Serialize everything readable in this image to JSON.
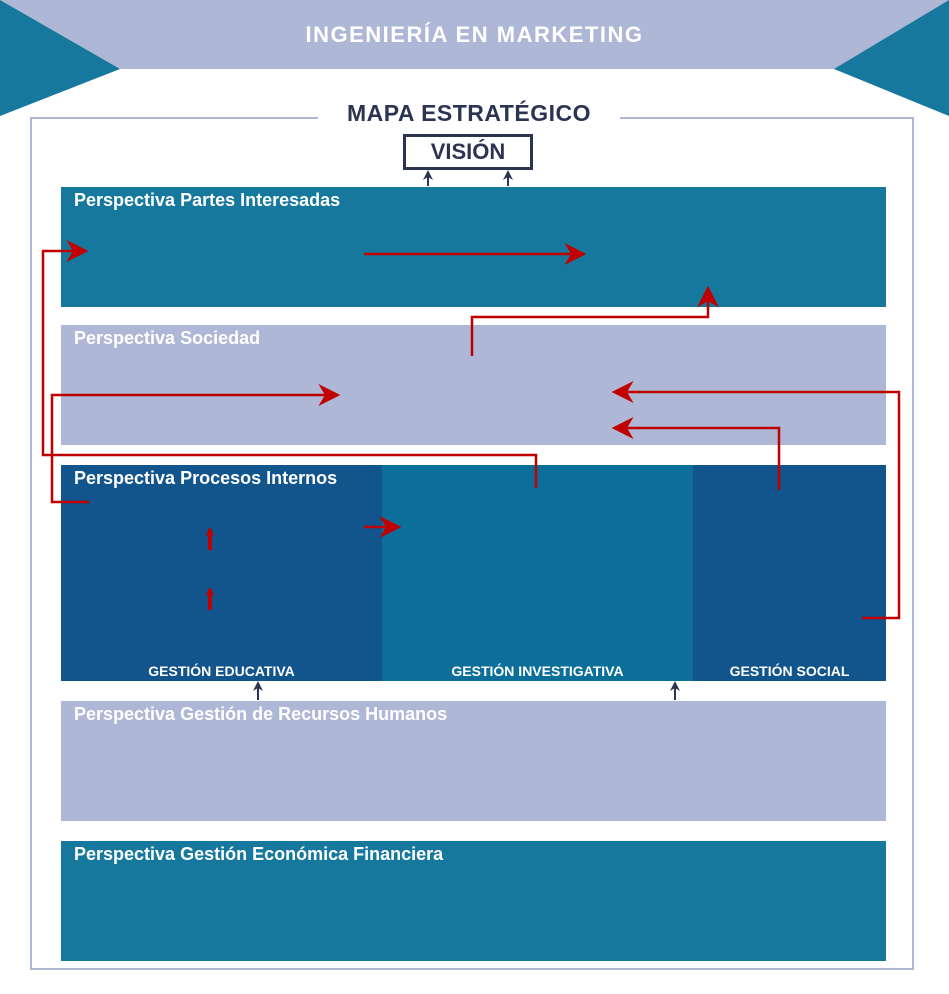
{
  "header": {
    "title": "INGENIERÍA EN MARKETING"
  },
  "map": {
    "title": "MAPA ESTRATÉGICO",
    "vision": "VISIÓN"
  },
  "perspectives": [
    {
      "label": "Perspectiva Partes Interesadas"
    },
    {
      "label": "Perspectiva Sociedad"
    },
    {
      "label": "Perspectiva Procesos Internos"
    },
    {
      "label": "Perspectiva Gestión de Recursos Humanos"
    },
    {
      "label": "Perspectiva Gestión Económica Financiera"
    }
  ],
  "process_columns": [
    {
      "label": "GESTIÓN EDUCATIVA"
    },
    {
      "label": "GESTIÓN INVESTIGATIVA"
    },
    {
      "label": "GESTIÓN SOCIAL"
    }
  ],
  "colors": {
    "lilac": "#aeb8d6",
    "teal": "#17789d",
    "navy_column": "#12548c",
    "mid_column": "#0b6f9a",
    "dark_text": "#2b3552",
    "arrow_red": "#c00000"
  }
}
